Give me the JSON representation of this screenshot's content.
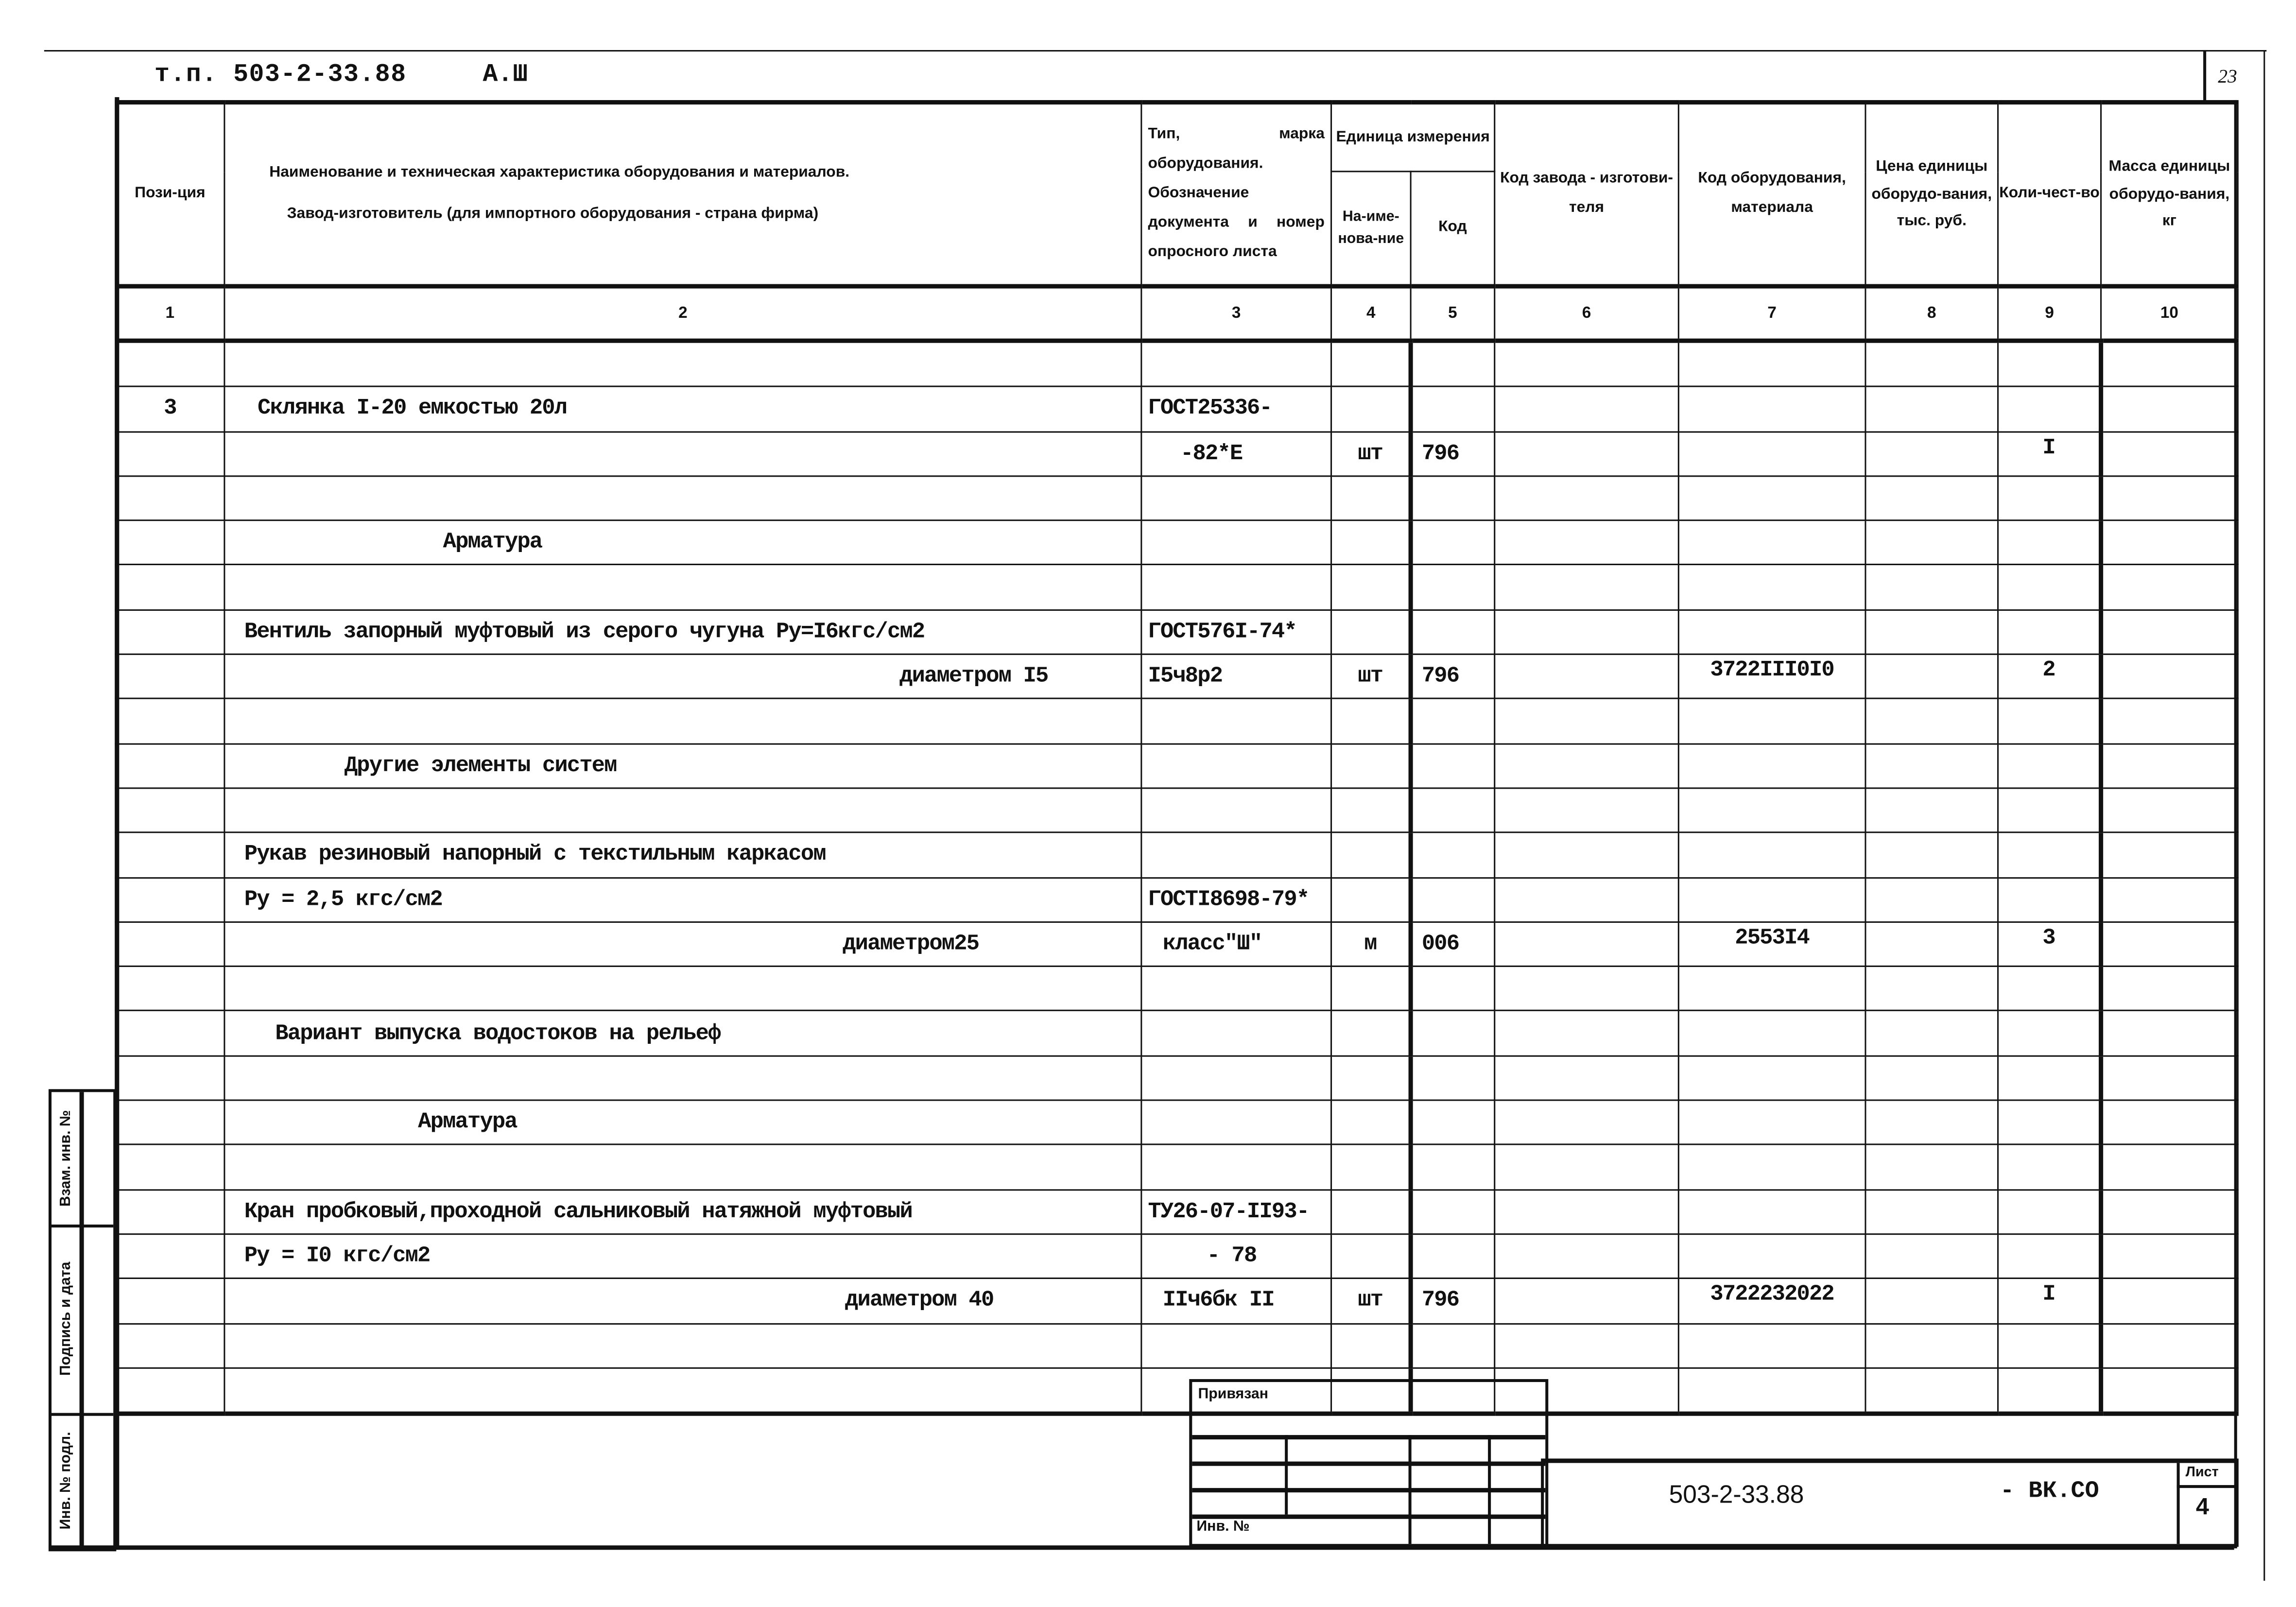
{
  "header": {
    "doc_code": "т.п. 503-2-33.88",
    "album": "А.Ш",
    "page_number": "23"
  },
  "columns": {
    "headers": [
      "Пози-ция",
      "Наименование и техническая характеристика оборудования и материалов.",
      "Тип, марка оборудования. Обозначение документа и номер опросного листа",
      "Единица измерения",
      "Код завода - изготови-теля",
      "Код оборудования, материала",
      "Цена единицы оборудо-вания, тыс. руб.",
      "Коли-чест-во",
      "Масса единицы оборудо-вания, кг"
    ],
    "manufacturer_note": "Завод-изготовитель (для импортного оборудования - страна фирма)",
    "unit_name": "На-име-нова-ние",
    "unit_code": "Код",
    "numbers": [
      "1",
      "2",
      "3",
      "4",
      "5",
      "6",
      "7",
      "8",
      "9",
      "10"
    ]
  },
  "rows": [
    {
      "pos": "",
      "name": "",
      "doc": "",
      "unit": "",
      "code": "",
      "factory": "",
      "equip": "",
      "price": "",
      "qty": "",
      "mass": ""
    },
    {
      "pos": "3",
      "name": "Склянка I-20  емкостью 20л",
      "doc": "ГОСТ25336-",
      "unit": "",
      "code": "",
      "factory": "",
      "equip": "",
      "price": "",
      "qty": "",
      "mass": ""
    },
    {
      "pos": "",
      "name": "",
      "doc": "-82*Е",
      "unit": "шт",
      "code": "796",
      "factory": "",
      "equip": "",
      "price": "",
      "qty": "I",
      "mass": ""
    },
    {
      "pos": "",
      "name": "",
      "doc": "",
      "unit": "",
      "code": "",
      "factory": "",
      "equip": "",
      "price": "",
      "qty": "",
      "mass": ""
    },
    {
      "pos": "",
      "name": "Арматура",
      "doc": "",
      "unit": "",
      "code": "",
      "factory": "",
      "equip": "",
      "price": "",
      "qty": "",
      "mass": ""
    },
    {
      "pos": "",
      "name": "",
      "doc": "",
      "unit": "",
      "code": "",
      "factory": "",
      "equip": "",
      "price": "",
      "qty": "",
      "mass": ""
    },
    {
      "pos": "",
      "name": "Вентиль запорный муфтовый из серого чугуна Ру=I6кгс/см2",
      "doc": "ГОСТ576I-74*",
      "unit": "",
      "code": "",
      "factory": "",
      "equip": "",
      "price": "",
      "qty": "",
      "mass": ""
    },
    {
      "pos": "",
      "name": "диаметром I5",
      "doc": "I5ч8р2",
      "unit": "шт",
      "code": "796",
      "factory": "",
      "equip": "3722III0I0",
      "price": "",
      "qty": "2",
      "mass": ""
    },
    {
      "pos": "",
      "name": "",
      "doc": "",
      "unit": "",
      "code": "",
      "factory": "",
      "equip": "",
      "price": "",
      "qty": "",
      "mass": ""
    },
    {
      "pos": "",
      "name": "Другие элементы  систем",
      "doc": "",
      "unit": "",
      "code": "",
      "factory": "",
      "equip": "",
      "price": "",
      "qty": "",
      "mass": ""
    },
    {
      "pos": "",
      "name": "",
      "doc": "",
      "unit": "",
      "code": "",
      "factory": "",
      "equip": "",
      "price": "",
      "qty": "",
      "mass": ""
    },
    {
      "pos": "",
      "name": "Рукав резиновый напорный с текстильным каркасом",
      "doc": "",
      "unit": "",
      "code": "",
      "factory": "",
      "equip": "",
      "price": "",
      "qty": "",
      "mass": ""
    },
    {
      "pos": "",
      "name": "Ру = 2,5 кгс/см2",
      "doc": "ГОСТI8698-79*",
      "unit": "",
      "code": "",
      "factory": "",
      "equip": "",
      "price": "",
      "qty": "",
      "mass": ""
    },
    {
      "pos": "",
      "name": "диаметром25",
      "doc": "класс\"Ш\"",
      "unit": "м",
      "code": "006",
      "factory": "",
      "equip": "2553I4",
      "price": "",
      "qty": "3",
      "mass": ""
    },
    {
      "pos": "",
      "name": "",
      "doc": "",
      "unit": "",
      "code": "",
      "factory": "",
      "equip": "",
      "price": "",
      "qty": "",
      "mass": ""
    },
    {
      "pos": "",
      "name": "Вариант выпуска водостоков на рельеф",
      "doc": "",
      "unit": "",
      "code": "",
      "factory": "",
      "equip": "",
      "price": "",
      "qty": "",
      "mass": ""
    },
    {
      "pos": "",
      "name": "",
      "doc": "",
      "unit": "",
      "code": "",
      "factory": "",
      "equip": "",
      "price": "",
      "qty": "",
      "mass": ""
    },
    {
      "pos": "",
      "name": "Арматура",
      "doc": "",
      "unit": "",
      "code": "",
      "factory": "",
      "equip": "",
      "price": "",
      "qty": "",
      "mass": ""
    },
    {
      "pos": "",
      "name": "",
      "doc": "",
      "unit": "",
      "code": "",
      "factory": "",
      "equip": "",
      "price": "",
      "qty": "",
      "mass": ""
    },
    {
      "pos": "",
      "name": "Кран пробковый,проходной сальниковый натяжной муфтовый",
      "doc": "ТУ26-07-II93-",
      "unit": "",
      "code": "",
      "factory": "",
      "equip": "",
      "price": "",
      "qty": "",
      "mass": ""
    },
    {
      "pos": "",
      "name": "Ру = I0 кгс/см2",
      "doc": "- 78",
      "unit": "",
      "code": "",
      "factory": "",
      "equip": "",
      "price": "",
      "qty": "",
      "mass": ""
    },
    {
      "pos": "",
      "name": "диаметром 40",
      "doc": "IIч6бк II",
      "unit": "шт",
      "code": "796",
      "factory": "",
      "equip": "3722232022",
      "price": "",
      "qty": "I",
      "mass": ""
    },
    {
      "pos": "",
      "name": "",
      "doc": "",
      "unit": "",
      "code": "",
      "factory": "",
      "equip": "",
      "price": "",
      "qty": "",
      "mass": ""
    },
    {
      "pos": "",
      "name": "",
      "doc": "",
      "unit": "",
      "code": "",
      "factory": "",
      "equip": "",
      "price": "",
      "qty": "",
      "mass": ""
    }
  ],
  "side_stamp": {
    "replaced_inv": "Взам. инв. №",
    "signature_date": "Подпись и дата",
    "original_inv": "Инв. № подл."
  },
  "title_block": {
    "bound_label": "Привязан",
    "inv_label": "Инв. №",
    "designation": "503-2-33.88",
    "designation_suffix": "- ВК.СО",
    "sheet_label": "Лист",
    "sheet_number": "4"
  }
}
